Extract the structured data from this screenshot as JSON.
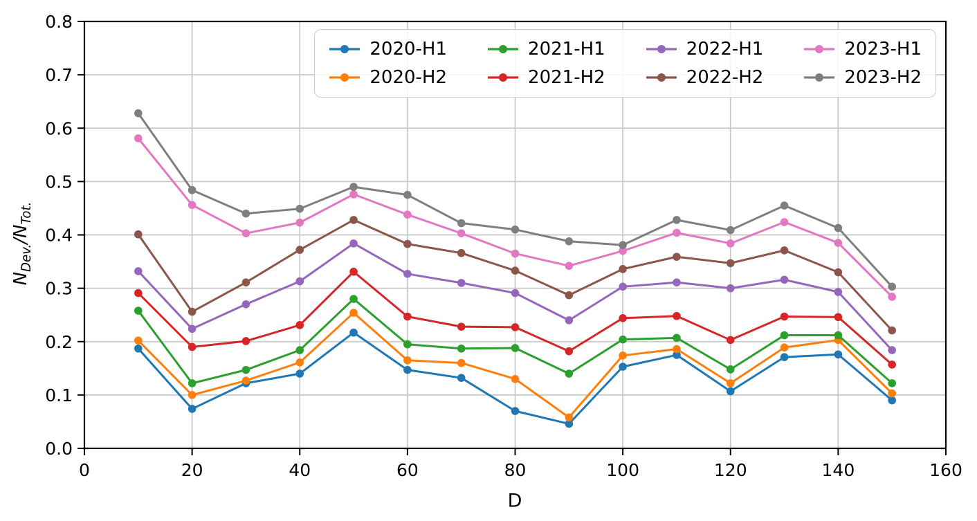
{
  "chart_data": {
    "type": "line",
    "title": "",
    "xlabel": "D",
    "ylabel": "N_{Dev.}/N_{Tot.}",
    "ylabel_parts": [
      "N",
      "Dev.",
      "/N",
      "Tot."
    ],
    "x": [
      10,
      20,
      30,
      40,
      50,
      60,
      70,
      80,
      90,
      100,
      110,
      120,
      130,
      140,
      150
    ],
    "xlim": [
      0,
      160
    ],
    "ylim": [
      0.0,
      0.8
    ],
    "xtick_labels": [
      "0",
      "20",
      "40",
      "60",
      "80",
      "100",
      "120",
      "140",
      "160"
    ],
    "ytick_labels": [
      "0.0",
      "0.1",
      "0.2",
      "0.3",
      "0.4",
      "0.5",
      "0.6",
      "0.7",
      "0.8"
    ],
    "grid": true,
    "marker": "circle",
    "legend": {
      "position": "upper-right-inside",
      "columns": 4,
      "rows": 2
    },
    "colors": {
      "axis": "#000000",
      "grid": "#c8c8c8",
      "background": "#ffffff",
      "legend_border": "#cccccc"
    },
    "series": [
      {
        "name": "2020-H1",
        "color": "#1f77b4",
        "values": [
          0.187,
          0.074,
          0.122,
          0.14,
          0.217,
          0.147,
          0.132,
          0.07,
          0.046,
          0.153,
          0.175,
          0.107,
          0.171,
          0.176,
          0.09
        ]
      },
      {
        "name": "2020-H2",
        "color": "#ff7f0e",
        "values": [
          0.202,
          0.1,
          0.127,
          0.161,
          0.254,
          0.165,
          0.16,
          0.13,
          0.058,
          0.174,
          0.186,
          0.122,
          0.189,
          0.203,
          0.103
        ]
      },
      {
        "name": "2021-H1",
        "color": "#2ca02c",
        "values": [
          0.258,
          0.122,
          0.147,
          0.184,
          0.28,
          0.195,
          0.187,
          0.188,
          0.14,
          0.204,
          0.207,
          0.148,
          0.212,
          0.212,
          0.122
        ]
      },
      {
        "name": "2021-H2",
        "color": "#d62728",
        "values": [
          0.291,
          0.19,
          0.201,
          0.231,
          0.331,
          0.247,
          0.228,
          0.227,
          0.182,
          0.244,
          0.248,
          0.203,
          0.247,
          0.246,
          0.157
        ]
      },
      {
        "name": "2022-H1",
        "color": "#9467bd",
        "values": [
          0.332,
          0.224,
          0.27,
          0.313,
          0.384,
          0.327,
          0.31,
          0.291,
          0.24,
          0.303,
          0.311,
          0.3,
          0.316,
          0.293,
          0.184
        ]
      },
      {
        "name": "2022-H2",
        "color": "#8c564b",
        "values": [
          0.401,
          0.256,
          0.311,
          0.372,
          0.428,
          0.383,
          0.366,
          0.333,
          0.287,
          0.336,
          0.359,
          0.347,
          0.371,
          0.33,
          0.221
        ]
      },
      {
        "name": "2023-H1",
        "color": "#e377c2",
        "values": [
          0.581,
          0.456,
          0.403,
          0.423,
          0.476,
          0.438,
          0.403,
          0.365,
          0.342,
          0.37,
          0.404,
          0.384,
          0.424,
          0.385,
          0.284
        ]
      },
      {
        "name": "2023-H2",
        "color": "#7f7f7f",
        "values": [
          0.628,
          0.484,
          0.44,
          0.449,
          0.49,
          0.475,
          0.422,
          0.41,
          0.388,
          0.381,
          0.428,
          0.409,
          0.455,
          0.413,
          0.303
        ]
      }
    ]
  }
}
